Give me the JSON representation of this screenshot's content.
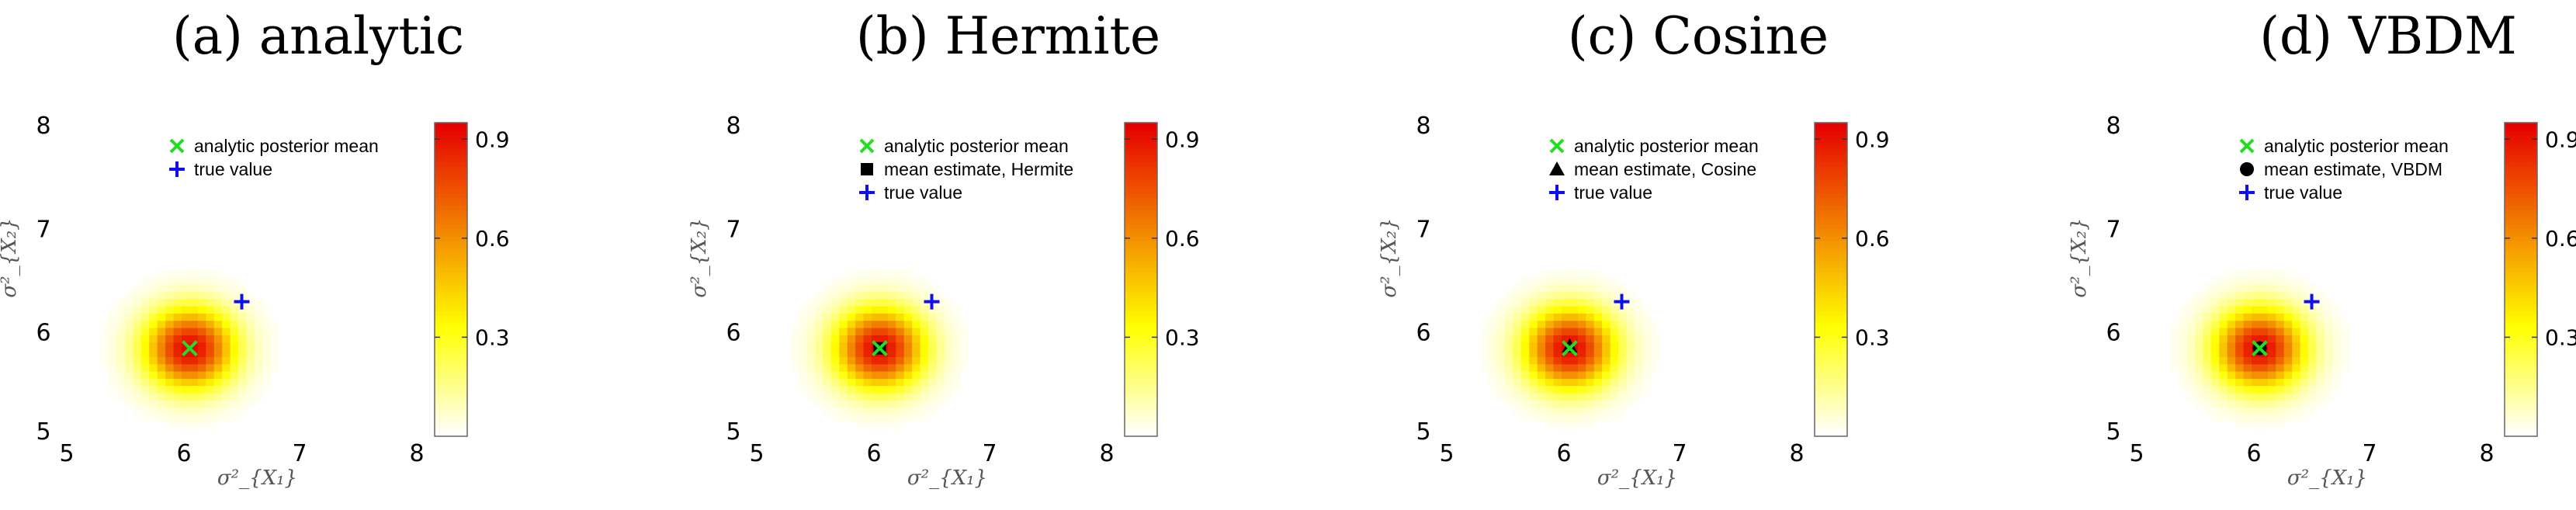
{
  "chart_data": [
    {
      "type": "heatmap",
      "title": "(a) analytic",
      "xlabel": "σ²_{X₁}",
      "ylabel": "σ²_{X₂}",
      "xlim": [
        5,
        8
      ],
      "ylim": [
        5,
        8
      ],
      "xticks": [
        "5",
        "6",
        "7",
        "8"
      ],
      "yticks": [
        "5",
        "6",
        "7",
        "8"
      ],
      "colorbar": {
        "range": [
          0,
          0.95
        ],
        "ticks": [
          "0.3",
          "0.6",
          "0.9"
        ],
        "colormap": "white-yellow-orange-red"
      },
      "density": {
        "peak": [
          6.05,
          5.85
        ],
        "peak_value": 0.95
      },
      "markers": [
        {
          "label": "analytic posterior mean",
          "symbol": "x",
          "color": "#22dd22",
          "x": 6.05,
          "y": 5.85
        },
        {
          "label": "true value",
          "symbol": "+",
          "color": "#1010ee",
          "x": 6.5,
          "y": 6.3
        }
      ],
      "legend": [
        "analytic posterior mean",
        "true value"
      ]
    },
    {
      "type": "heatmap",
      "title": "(b) Hermite",
      "xlabel": "σ²_{X₁}",
      "ylabel": "σ²_{X₂}",
      "xlim": [
        5,
        8
      ],
      "ylim": [
        5,
        8
      ],
      "xticks": [
        "5",
        "6",
        "7",
        "8"
      ],
      "yticks": [
        "5",
        "6",
        "7",
        "8"
      ],
      "colorbar": {
        "range": [
          0,
          0.95
        ],
        "ticks": [
          "0.3",
          "0.6",
          "0.9"
        ],
        "colormap": "white-yellow-orange-red"
      },
      "density": {
        "peak": [
          6.05,
          5.85
        ],
        "peak_value": 0.95
      },
      "markers": [
        {
          "label": "analytic posterior mean",
          "symbol": "x",
          "color": "#22dd22",
          "x": 6.05,
          "y": 5.85
        },
        {
          "label": "mean estimate, Hermite",
          "symbol": "square",
          "color": "#000000",
          "x": 6.05,
          "y": 5.85
        },
        {
          "label": "true value",
          "symbol": "+",
          "color": "#1010ee",
          "x": 6.5,
          "y": 6.3
        }
      ],
      "legend": [
        "analytic posterior mean",
        "mean estimate, Hermite",
        "true value"
      ]
    },
    {
      "type": "heatmap",
      "title": "(c) Cosine",
      "xlabel": "σ²_{X₁}",
      "ylabel": "σ²_{X₂}",
      "xlim": [
        5,
        8
      ],
      "ylim": [
        5,
        8
      ],
      "xticks": [
        "5",
        "6",
        "7",
        "8"
      ],
      "yticks": [
        "5",
        "6",
        "7",
        "8"
      ],
      "colorbar": {
        "range": [
          0,
          0.95
        ],
        "ticks": [
          "0.3",
          "0.6",
          "0.9"
        ],
        "colormap": "white-yellow-orange-red"
      },
      "density": {
        "peak": [
          6.05,
          5.85
        ],
        "peak_value": 0.95
      },
      "markers": [
        {
          "label": "analytic posterior mean",
          "symbol": "x",
          "color": "#22dd22",
          "x": 6.05,
          "y": 5.85
        },
        {
          "label": "mean estimate, Cosine",
          "symbol": "triangle",
          "color": "#000000",
          "x": 6.05,
          "y": 5.87
        },
        {
          "label": "true value",
          "symbol": "+",
          "color": "#1010ee",
          "x": 6.5,
          "y": 6.3
        }
      ],
      "legend": [
        "analytic posterior mean",
        "mean estimate, Cosine",
        "true value"
      ]
    },
    {
      "type": "heatmap",
      "title": "(d) VBDM",
      "xlabel": "σ²_{X₁}",
      "ylabel": "σ²_{X₂}",
      "xlim": [
        5,
        8
      ],
      "ylim": [
        5,
        8
      ],
      "xticks": [
        "5",
        "6",
        "7",
        "8"
      ],
      "yticks": [
        "5",
        "6",
        "7",
        "8"
      ],
      "colorbar": {
        "range": [
          0,
          0.95
        ],
        "ticks": [
          "0.3",
          "0.6",
          "0.9"
        ],
        "colormap": "white-yellow-orange-red"
      },
      "density": {
        "peak": [
          6.05,
          5.85
        ],
        "peak_value": 0.95
      },
      "markers": [
        {
          "label": "analytic posterior mean",
          "symbol": "x",
          "color": "#22dd22",
          "x": 6.05,
          "y": 5.85
        },
        {
          "label": "mean estimate, VBDM",
          "symbol": "circle",
          "color": "#000000",
          "x": 6.05,
          "y": 5.85
        },
        {
          "label": "true value",
          "symbol": "+",
          "color": "#1010ee",
          "x": 6.5,
          "y": 6.3
        }
      ],
      "legend": [
        "analytic posterior mean",
        "mean estimate, VBDM",
        "true value"
      ]
    }
  ]
}
